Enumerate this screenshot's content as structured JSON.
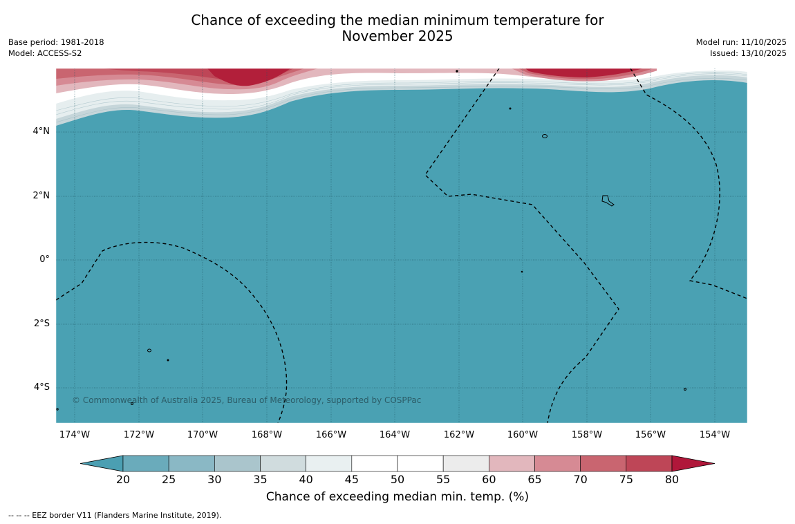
{
  "header": {
    "title_line1": "Chance of exceeding the median minimum temperature for",
    "title_line2": "November 2025",
    "base_period": "Base period: 1981-2018",
    "model": "Model: ACCESS-S2",
    "model_run": "Model run: 11/10/2025",
    "issued": "Issued: 13/10/2025"
  },
  "map": {
    "lon_ticks": [
      "174°W",
      "172°W",
      "170°W",
      "168°W",
      "166°W",
      "164°W",
      "162°W",
      "160°W",
      "158°W",
      "156°W",
      "154°W"
    ],
    "lat_ticks": [
      "4°N",
      "2°N",
      "0°",
      "2°S",
      "4°S"
    ],
    "copyright": "© Commonwealth of Australia 2025, Bureau of Meteorology, supported by COSPPac",
    "colors": {
      "ocean": "#4aa1b3",
      "red_dark": "#b21f3a",
      "red_mid": "#c7515f"
    }
  },
  "colorbar": {
    "ticks": [
      "20",
      "25",
      "30",
      "35",
      "40",
      "45",
      "50",
      "55",
      "60",
      "65",
      "70",
      "75",
      "80"
    ],
    "colors": [
      "#4b9fb2",
      "#6aabbb",
      "#8ab8c5",
      "#aac5cc",
      "#d0dcde",
      "#e9f0f1",
      "#ffffff",
      "#ffffff",
      "#ececec",
      "#e2b7bd",
      "#d68a94",
      "#c96570",
      "#be4657",
      "#b0173a"
    ],
    "label": "Chance of exceeding median min. temp. (%)"
  },
  "footer": {
    "legend": "--  --  -- EEZ border V11 (Flanders Marine Institute, 2019)."
  }
}
